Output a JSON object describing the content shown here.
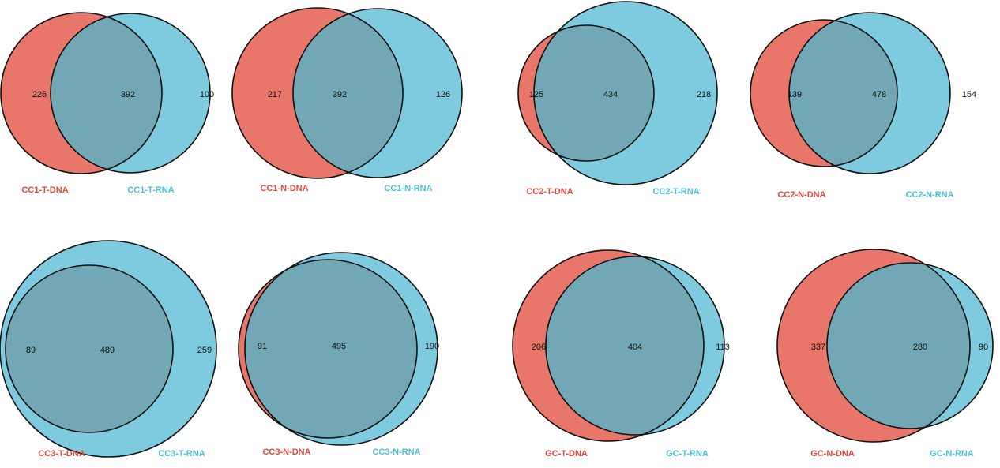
{
  "colors": {
    "dna": "#e8766a",
    "rna": "#7ecbe0",
    "overlap": "#72a7b5",
    "outline": "#111111",
    "label_dna": "#e04a3c",
    "label_rna": "#4cbfdc"
  },
  "venns": [
    {
      "id": "cc1-t",
      "left_label": "CC1-T-DNA",
      "right_label": "CC1-T-RNA",
      "left_only": "225",
      "overlap": "392",
      "right_only": "100"
    },
    {
      "id": "cc1-n",
      "left_label": "CC1-N-DNA",
      "right_label": "CC1-N-RNA",
      "left_only": "217",
      "overlap": "392",
      "right_only": "126"
    },
    {
      "id": "cc2-t",
      "left_label": "CC2-T-DNA",
      "right_label": "CC2-T-RNA",
      "left_only": "125",
      "overlap": "434",
      "right_only": "218"
    },
    {
      "id": "cc2-n",
      "left_label": "CC2-N-DNA",
      "right_label": "CC2-N-RNA",
      "left_only": "139",
      "overlap": "478",
      "right_only": "154"
    },
    {
      "id": "cc3-t",
      "left_label": "CC3-T-DNA",
      "right_label": "CC3-T-RNA",
      "left_only": "89",
      "overlap": "489",
      "right_only": "259"
    },
    {
      "id": "cc3-n",
      "left_label": "CC3-N-DNA",
      "right_label": "CC3-N-RNA",
      "left_only": "91",
      "overlap": "495",
      "right_only": "190"
    },
    {
      "id": "gc-t",
      "left_label": "GC-T-DNA",
      "right_label": "GC-T-RNA",
      "left_only": "206",
      "overlap": "404",
      "right_only": "113"
    },
    {
      "id": "gc-n",
      "left_label": "GC-N-DNA",
      "right_label": "GC-N-RNA",
      "left_only": "337",
      "overlap": "280",
      "right_only": "90"
    }
  ]
}
